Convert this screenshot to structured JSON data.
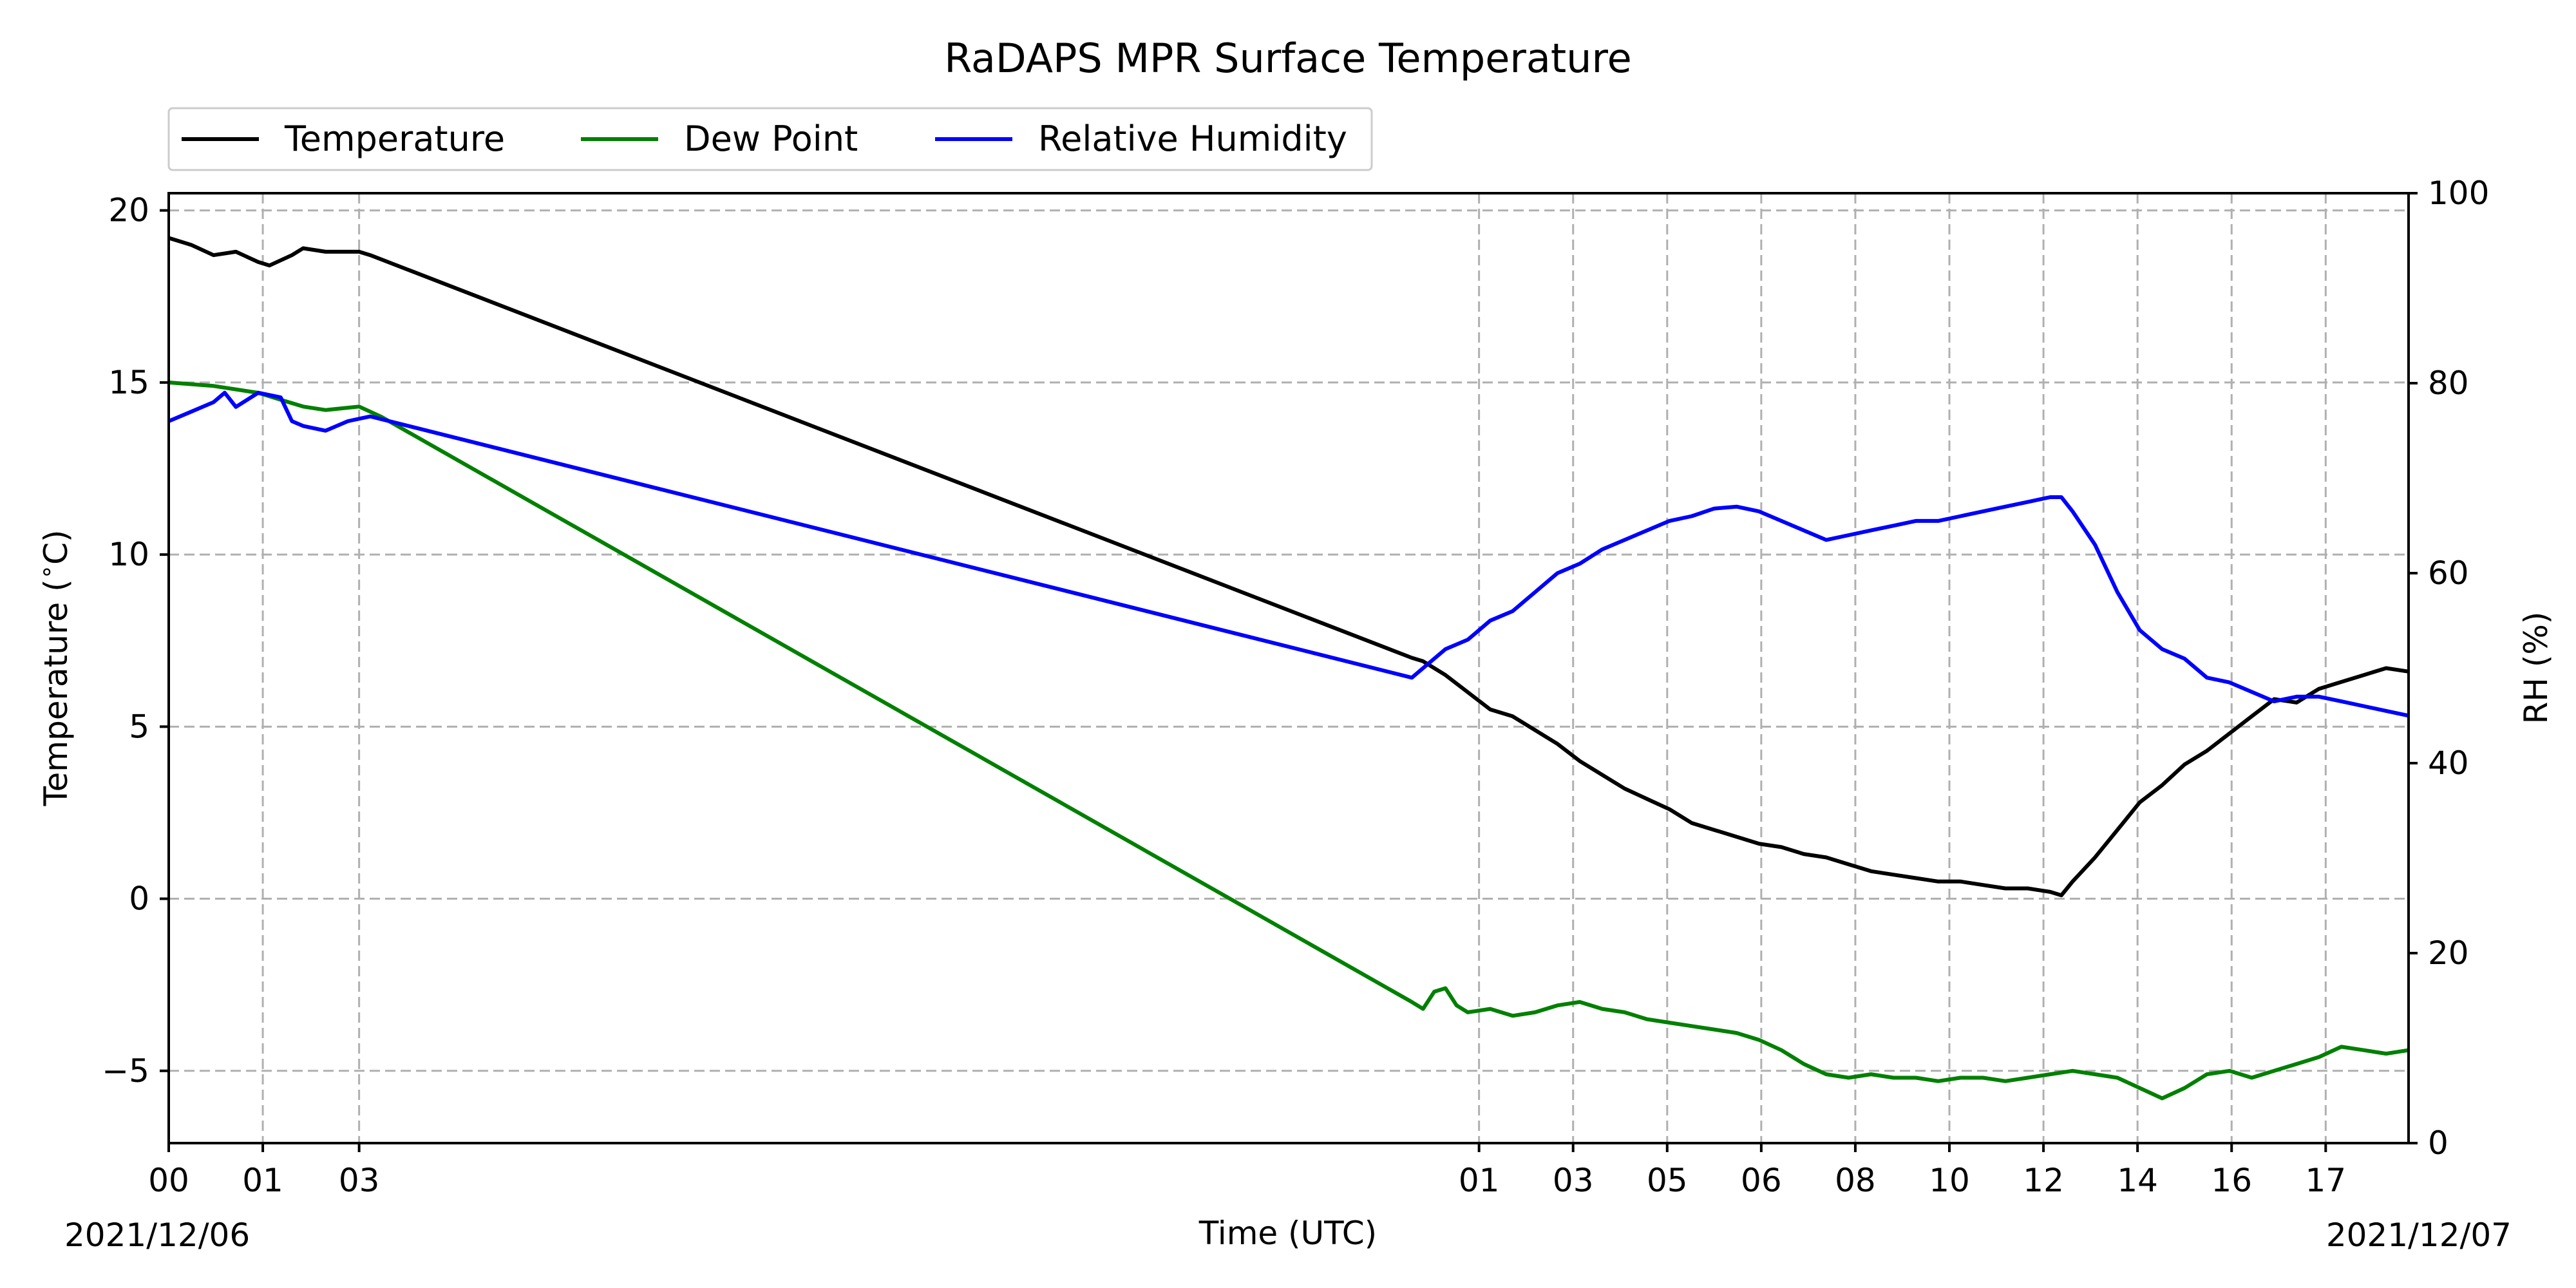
{
  "chart_data": {
    "type": "line",
    "title": "RaDAPS MPR Surface Temperature",
    "xlabel": "Time (UTC)",
    "ylabel_left": "Temperature ($^\\circ$C)",
    "ylabel_right": "RH (%)",
    "ylim_left": [
      -7.1,
      20.5
    ],
    "ylim_right": [
      0,
      100
    ],
    "y_ticks_left": [
      -5,
      0,
      5,
      10,
      15,
      20
    ],
    "y_ticks_right": [
      0,
      20,
      40,
      60,
      80,
      100
    ],
    "x_ticks": [
      {
        "pos": 0.0,
        "label": "00"
      },
      {
        "pos": 0.042,
        "label": "01"
      },
      {
        "pos": 0.085,
        "label": "03"
      },
      {
        "pos": 0.585,
        "label": "01"
      },
      {
        "pos": 0.627,
        "label": "03"
      },
      {
        "pos": 0.669,
        "label": "05"
      },
      {
        "pos": 0.711,
        "label": "06"
      },
      {
        "pos": 0.753,
        "label": "08"
      },
      {
        "pos": 0.795,
        "label": "10"
      },
      {
        "pos": 0.837,
        "label": "12"
      },
      {
        "pos": 0.879,
        "label": "14"
      },
      {
        "pos": 0.921,
        "label": "16"
      },
      {
        "pos": 0.963,
        "label": "17"
      }
    ],
    "date_start": "2021/12/06",
    "date_end": "2021/12/07",
    "grid": true,
    "legend_position": "top-left",
    "series": [
      {
        "name": "Temperature",
        "axis": "left",
        "color": "#000000",
        "points": [
          [
            0.0,
            19.2
          ],
          [
            0.01,
            19.0
          ],
          [
            0.02,
            18.7
          ],
          [
            0.03,
            18.8
          ],
          [
            0.04,
            18.5
          ],
          [
            0.045,
            18.4
          ],
          [
            0.055,
            18.7
          ],
          [
            0.06,
            18.9
          ],
          [
            0.07,
            18.8
          ],
          [
            0.08,
            18.8
          ],
          [
            0.085,
            18.8
          ],
          [
            0.09,
            18.7
          ],
          [
            0.555,
            7.0
          ],
          [
            0.56,
            6.9
          ],
          [
            0.57,
            6.5
          ],
          [
            0.58,
            6.0
          ],
          [
            0.59,
            5.5
          ],
          [
            0.6,
            5.3
          ],
          [
            0.61,
            4.9
          ],
          [
            0.62,
            4.5
          ],
          [
            0.63,
            4.0
          ],
          [
            0.64,
            3.6
          ],
          [
            0.65,
            3.2
          ],
          [
            0.66,
            2.9
          ],
          [
            0.67,
            2.6
          ],
          [
            0.68,
            2.2
          ],
          [
            0.69,
            2.0
          ],
          [
            0.7,
            1.8
          ],
          [
            0.71,
            1.6
          ],
          [
            0.72,
            1.5
          ],
          [
            0.73,
            1.3
          ],
          [
            0.74,
            1.2
          ],
          [
            0.75,
            1.0
          ],
          [
            0.76,
            0.8
          ],
          [
            0.77,
            0.7
          ],
          [
            0.78,
            0.6
          ],
          [
            0.79,
            0.5
          ],
          [
            0.8,
            0.5
          ],
          [
            0.81,
            0.4
          ],
          [
            0.82,
            0.3
          ],
          [
            0.83,
            0.3
          ],
          [
            0.84,
            0.2
          ],
          [
            0.845,
            0.1
          ],
          [
            0.85,
            0.5
          ],
          [
            0.86,
            1.2
          ],
          [
            0.87,
            2.0
          ],
          [
            0.88,
            2.8
          ],
          [
            0.89,
            3.3
          ],
          [
            0.9,
            3.9
          ],
          [
            0.91,
            4.3
          ],
          [
            0.92,
            4.8
          ],
          [
            0.93,
            5.3
          ],
          [
            0.94,
            5.8
          ],
          [
            0.95,
            5.7
          ],
          [
            0.96,
            6.1
          ],
          [
            0.97,
            6.3
          ],
          [
            0.98,
            6.5
          ],
          [
            0.99,
            6.7
          ],
          [
            1.0,
            6.6
          ]
        ]
      },
      {
        "name": "Dew Point",
        "axis": "left",
        "color": "#008000",
        "points": [
          [
            0.0,
            15.0
          ],
          [
            0.02,
            14.9
          ],
          [
            0.04,
            14.7
          ],
          [
            0.05,
            14.5
          ],
          [
            0.06,
            14.3
          ],
          [
            0.07,
            14.2
          ],
          [
            0.085,
            14.3
          ],
          [
            0.095,
            14.0
          ],
          [
            0.555,
            -3.0
          ],
          [
            0.56,
            -3.2
          ],
          [
            0.565,
            -2.7
          ],
          [
            0.57,
            -2.6
          ],
          [
            0.575,
            -3.1
          ],
          [
            0.58,
            -3.3
          ],
          [
            0.59,
            -3.2
          ],
          [
            0.6,
            -3.4
          ],
          [
            0.61,
            -3.3
          ],
          [
            0.62,
            -3.1
          ],
          [
            0.63,
            -3.0
          ],
          [
            0.64,
            -3.2
          ],
          [
            0.65,
            -3.3
          ],
          [
            0.66,
            -3.5
          ],
          [
            0.67,
            -3.6
          ],
          [
            0.68,
            -3.7
          ],
          [
            0.69,
            -3.8
          ],
          [
            0.7,
            -3.9
          ],
          [
            0.71,
            -4.1
          ],
          [
            0.72,
            -4.4
          ],
          [
            0.73,
            -4.8
          ],
          [
            0.74,
            -5.1
          ],
          [
            0.75,
            -5.2
          ],
          [
            0.76,
            -5.1
          ],
          [
            0.77,
            -5.2
          ],
          [
            0.78,
            -5.2
          ],
          [
            0.79,
            -5.3
          ],
          [
            0.8,
            -5.2
          ],
          [
            0.81,
            -5.2
          ],
          [
            0.82,
            -5.3
          ],
          [
            0.83,
            -5.2
          ],
          [
            0.84,
            -5.1
          ],
          [
            0.85,
            -5.0
          ],
          [
            0.86,
            -5.1
          ],
          [
            0.87,
            -5.2
          ],
          [
            0.88,
            -5.5
          ],
          [
            0.89,
            -5.8
          ],
          [
            0.9,
            -5.5
          ],
          [
            0.91,
            -5.1
          ],
          [
            0.92,
            -5.0
          ],
          [
            0.93,
            -5.2
          ],
          [
            0.94,
            -5.0
          ],
          [
            0.95,
            -4.8
          ],
          [
            0.96,
            -4.6
          ],
          [
            0.97,
            -4.3
          ],
          [
            0.98,
            -4.4
          ],
          [
            0.99,
            -4.5
          ],
          [
            1.0,
            -4.4
          ]
        ]
      },
      {
        "name": "Relative Humidity",
        "axis": "right",
        "color": "#0000ff",
        "points": [
          [
            0.0,
            76.0
          ],
          [
            0.01,
            77.0
          ],
          [
            0.02,
            78.0
          ],
          [
            0.025,
            79.0
          ],
          [
            0.03,
            77.5
          ],
          [
            0.04,
            79.0
          ],
          [
            0.05,
            78.5
          ],
          [
            0.055,
            76.0
          ],
          [
            0.06,
            75.5
          ],
          [
            0.07,
            75.0
          ],
          [
            0.08,
            76.0
          ],
          [
            0.09,
            76.5
          ],
          [
            0.555,
            49.0
          ],
          [
            0.56,
            50.0
          ],
          [
            0.57,
            52.0
          ],
          [
            0.58,
            53.0
          ],
          [
            0.59,
            55.0
          ],
          [
            0.6,
            56.0
          ],
          [
            0.61,
            58.0
          ],
          [
            0.62,
            60.0
          ],
          [
            0.63,
            61.0
          ],
          [
            0.64,
            62.5
          ],
          [
            0.65,
            63.5
          ],
          [
            0.66,
            64.5
          ],
          [
            0.67,
            65.5
          ],
          [
            0.68,
            66.0
          ],
          [
            0.69,
            66.8
          ],
          [
            0.7,
            67.0
          ],
          [
            0.71,
            66.5
          ],
          [
            0.72,
            65.5
          ],
          [
            0.73,
            64.5
          ],
          [
            0.74,
            63.5
          ],
          [
            0.75,
            64.0
          ],
          [
            0.76,
            64.5
          ],
          [
            0.77,
            65.0
          ],
          [
            0.78,
            65.5
          ],
          [
            0.79,
            65.5
          ],
          [
            0.8,
            66.0
          ],
          [
            0.81,
            66.5
          ],
          [
            0.82,
            67.0
          ],
          [
            0.83,
            67.5
          ],
          [
            0.84,
            68.0
          ],
          [
            0.845,
            68.0
          ],
          [
            0.85,
            66.5
          ],
          [
            0.86,
            63.0
          ],
          [
            0.87,
            58.0
          ],
          [
            0.88,
            54.0
          ],
          [
            0.89,
            52.0
          ],
          [
            0.9,
            51.0
          ],
          [
            0.91,
            49.0
          ],
          [
            0.92,
            48.5
          ],
          [
            0.93,
            47.5
          ],
          [
            0.94,
            46.5
          ],
          [
            0.95,
            47.0
          ],
          [
            0.96,
            47.0
          ],
          [
            0.97,
            46.5
          ],
          [
            0.98,
            46.0
          ],
          [
            0.99,
            45.5
          ],
          [
            1.0,
            45.0
          ]
        ]
      }
    ]
  }
}
